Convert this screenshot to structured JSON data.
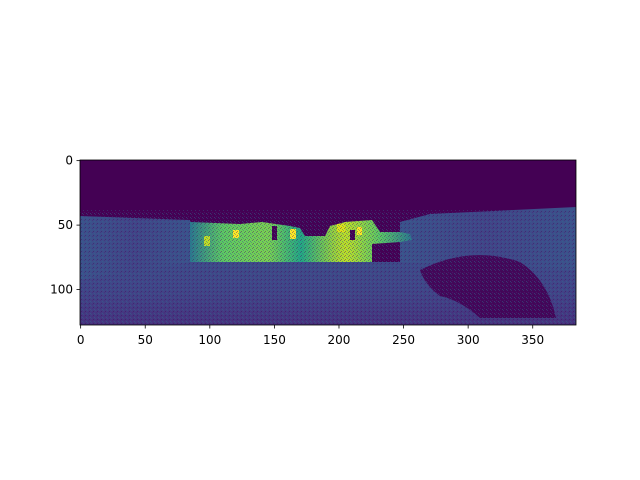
{
  "chart_data": {
    "type": "heatmap",
    "title": "",
    "xlabel": "",
    "ylabel": "",
    "image_shape": [
      128,
      384
    ],
    "x_ticks": [
      0,
      50,
      100,
      150,
      200,
      250,
      300,
      350
    ],
    "y_ticks": [
      0,
      50,
      100
    ],
    "x_tick_labels": [
      "0",
      "50",
      "100",
      "150",
      "200",
      "250",
      "300",
      "350"
    ],
    "y_tick_labels": [
      "0",
      "50",
      "100"
    ],
    "xlim": [
      -0.5,
      383.5
    ],
    "ylim": [
      127.5,
      -0.5
    ],
    "y_inverted": true,
    "colormap": "viridis",
    "colorbar": false,
    "grid": false,
    "colors": {
      "background_low": "#440154",
      "mid_blue": "#3b528b",
      "teal": "#21918c",
      "green": "#5ec962",
      "yellow": "#fde725"
    }
  }
}
